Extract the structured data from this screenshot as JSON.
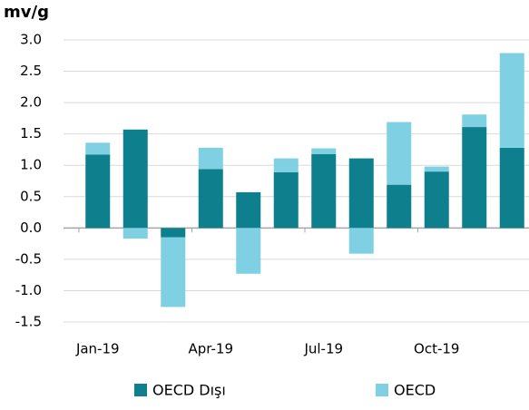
{
  "chart_data": {
    "type": "bar",
    "stacked": true,
    "title": "mv/g",
    "categories": [
      "Jan-19",
      null,
      null,
      "Apr-19",
      null,
      null,
      "Jul-19",
      null,
      null,
      "Oct-19",
      null,
      null
    ],
    "series": [
      {
        "name": "OECD Dışı",
        "color": "#0e7f8c",
        "values": [
          1.17,
          1.57,
          -0.15,
          0.94,
          0.57,
          0.89,
          1.18,
          1.11,
          0.69,
          0.9,
          1.61,
          1.28
        ]
      },
      {
        "name": "OECD",
        "color": "#7fd0e3",
        "values": [
          0.19,
          -0.17,
          -1.11,
          0.34,
          -0.73,
          0.22,
          0.09,
          -0.41,
          1.0,
          0.08,
          0.2,
          1.51
        ]
      }
    ],
    "ylim": [
      -1.5,
      3.0
    ],
    "yticks": [
      {
        "value": -1.5,
        "label": "-1.5"
      },
      {
        "value": -1.0,
        "label": "-1.0"
      },
      {
        "value": -0.5,
        "label": "-0.5"
      },
      {
        "value": 0,
        "label": "0.0"
      },
      {
        "value": 0.5,
        "label": "0.5"
      },
      {
        "value": 1.0,
        "label": "1.0"
      },
      {
        "value": 1.5,
        "label": "1.5"
      },
      {
        "value": 2.0,
        "label": "2.0"
      },
      {
        "value": 2.5,
        "label": "2.5"
      },
      {
        "value": 3.0,
        "label": "3.0"
      }
    ],
    "grid": true,
    "legend": "bottom"
  }
}
